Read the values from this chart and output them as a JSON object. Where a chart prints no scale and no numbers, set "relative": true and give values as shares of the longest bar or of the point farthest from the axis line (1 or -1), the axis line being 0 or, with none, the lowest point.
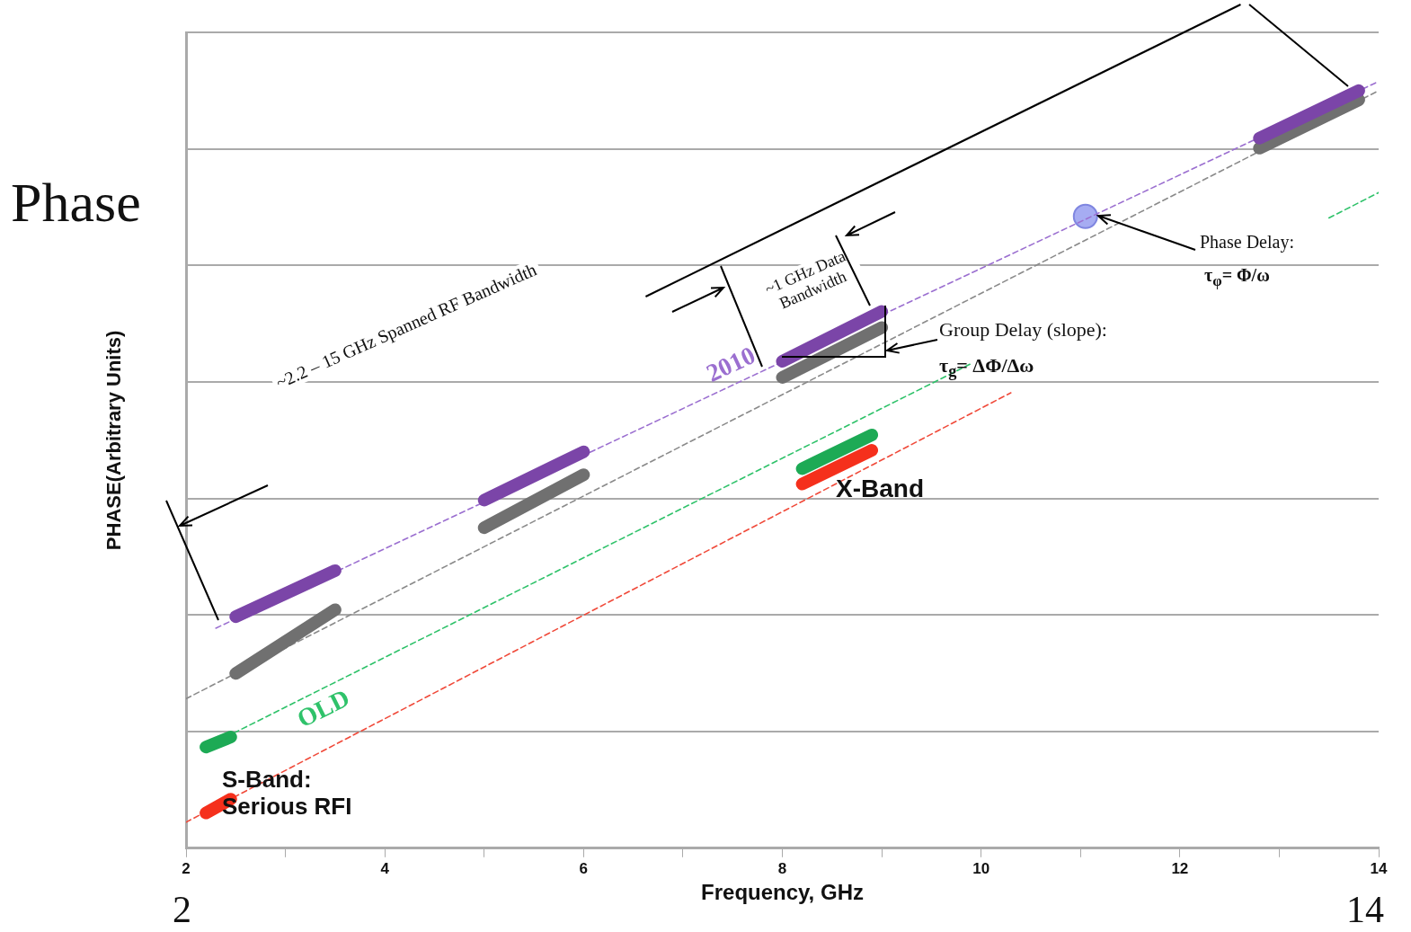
{
  "chart_data": {
    "type": "line",
    "relative": true,
    "xlabel": "Frequency, GHz",
    "ylabel": "PHASE(Arbitrary Units)",
    "xlim": [
      2,
      14
    ],
    "xticks": [
      2,
      {
        "value": 3,
        "label": null
      },
      4,
      {
        "value": 5,
        "label": null
      },
      6,
      {
        "value": 7,
        "label": null
      },
      8,
      {
        "value": 9,
        "label": null
      },
      10,
      {
        "value": 11,
        "label": null
      },
      12,
      {
        "value": 13,
        "label": null
      },
      14
    ],
    "grid": "y",
    "legend": false,
    "marker": "none",
    "series": [
      {
        "color": "#7b45a8",
        "line_style": "solid",
        "x": [
          2.5,
          3.5,
          4.2,
          5,
          6,
          7,
          8,
          9,
          10,
          12.8,
          13.8
        ],
        "values": [
          0.302,
          0.362,
          null,
          0.454,
          0.517,
          null,
          0.635,
          0.7,
          null,
          0.926,
          0.988
        ]
      },
      {
        "color": "#707070",
        "line_style": "solid",
        "x": [
          2.5,
          3.5,
          4.2,
          5,
          6,
          7,
          8,
          9,
          10,
          12.8,
          13.8
        ],
        "values": [
          0.228,
          0.311,
          null,
          0.418,
          0.487,
          null,
          0.614,
          0.679,
          null,
          0.913,
          0.976
        ]
      },
      {
        "color": "#1daa55",
        "line_style": "solid",
        "x": [
          2.2,
          2.45,
          5,
          8.2,
          8.9
        ],
        "values": [
          0.132,
          0.145,
          null,
          0.495,
          0.539
        ]
      },
      {
        "color": "#f5301c",
        "line_style": "solid",
        "x": [
          2.2,
          2.45,
          5,
          8.2,
          8.9
        ],
        "values": [
          0.046,
          0.064,
          null,
          0.475,
          0.519
        ]
      },
      {
        "name": "2010",
        "color": "#9b6fd0",
        "line_style": "dashed",
        "x": [
          2.3,
          14
        ],
        "values": [
          0.287,
          1.0
        ]
      },
      {
        "color": "#8a8a8a",
        "line_style": "dashed",
        "x": [
          2,
          14
        ],
        "values": [
          0.195,
          0.988
        ]
      },
      {
        "name": "OLD",
        "color": "#2fc26a",
        "line_style": "dashed",
        "x": [
          2.4,
          9.9,
          10,
          13.5,
          14
        ],
        "values": [
          0.145,
          0.632,
          null,
          0.822,
          0.855
        ]
      },
      {
        "color": "#f04a3a",
        "line_style": "dashed",
        "x": [
          2,
          10.3
        ],
        "values": [
          0.034,
          0.594
        ]
      },
      {
        "type": "scatter",
        "marker": "circle",
        "color": "#a6acf2",
        "x": [
          11.05
        ],
        "values": [
          0.824
        ]
      }
    ],
    "annotations": [
      "Phase",
      "~2.2 – 15 GHz Spanned RF Bandwidth",
      "~1 GHz Data Bandwidth",
      "Group Delay (slope):",
      "τ$_{g}$= ΔΦ/Δω",
      "Phase Delay:",
      "τ$_{φ}$= Φ/ω",
      "X-Band",
      "S-Band: Serious RFI",
      "2",
      "14"
    ]
  }
}
